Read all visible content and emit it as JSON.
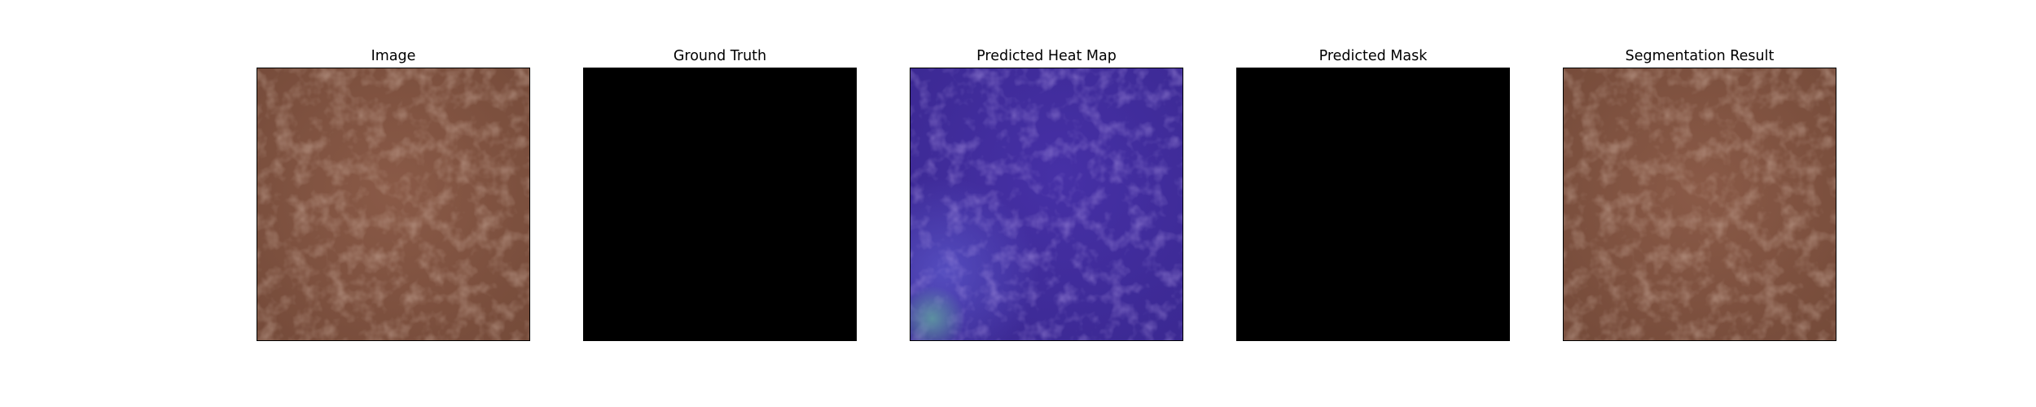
{
  "panels": [
    {
      "key": "image",
      "title": "Image"
    },
    {
      "key": "ground_truth",
      "title": "Ground Truth"
    },
    {
      "key": "heat_map",
      "title": "Predicted Heat Map"
    },
    {
      "key": "mask",
      "title": "Predicted Mask"
    },
    {
      "key": "segmentation",
      "title": "Segmentation Result"
    }
  ],
  "colors": {
    "leather_base": "#7e5240",
    "leather_light": "#9a6a56",
    "leather_dark": "#5e3a2c",
    "mask_black": "#000000",
    "heat_base": "#3f2a9c",
    "heat_light": "#5a44b8",
    "heat_hotspot": "#4f8a9a"
  }
}
